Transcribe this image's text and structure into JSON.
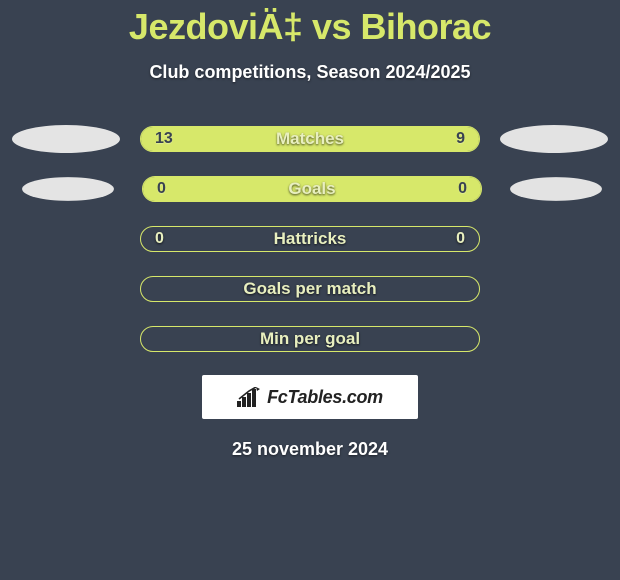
{
  "title": "JezdoviÄ‡ vs Bihorac",
  "subtitle": "Club competitions, Season 2024/2025",
  "date": "25 november 2024",
  "logo": {
    "text": "FcTables.com"
  },
  "colors": {
    "background": "#394251",
    "accent": "#d7e86a",
    "text_light": "#ffffff",
    "badge": "#e4e4e4"
  },
  "stats": [
    {
      "label": "Matches",
      "left_value": "13",
      "right_value": "9",
      "left_fill_pct": 59,
      "right_fill_pct": 41,
      "left_on_fill": true,
      "right_on_fill": true,
      "show_badge_left": true,
      "show_badge_right": true
    },
    {
      "label": "Goals",
      "left_value": "0",
      "right_value": "0",
      "left_fill_pct": 50,
      "right_fill_pct": 50,
      "left_on_fill": true,
      "right_on_fill": true,
      "show_badge_left": true,
      "show_badge_right": true
    },
    {
      "label": "Hattricks",
      "left_value": "0",
      "right_value": "0",
      "left_fill_pct": 0,
      "right_fill_pct": 0,
      "left_on_fill": false,
      "right_on_fill": false,
      "show_badge_left": false,
      "show_badge_right": false
    },
    {
      "label": "Goals per match",
      "left_value": "",
      "right_value": "",
      "left_fill_pct": 0,
      "right_fill_pct": 0,
      "left_on_fill": false,
      "right_on_fill": false,
      "show_badge_left": false,
      "show_badge_right": false
    },
    {
      "label": "Min per goal",
      "left_value": "",
      "right_value": "",
      "left_fill_pct": 0,
      "right_fill_pct": 0,
      "left_on_fill": false,
      "right_on_fill": false,
      "show_badge_left": false,
      "show_badge_right": false
    }
  ]
}
